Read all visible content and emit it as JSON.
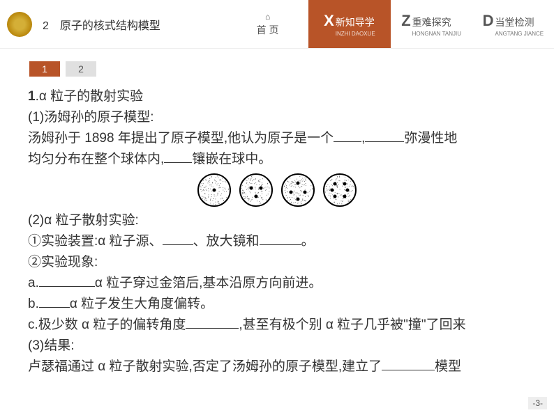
{
  "header": {
    "chapter_num": "2",
    "chapter_title": "原子的核式结构模型",
    "nav": {
      "home": {
        "icon": "⌂",
        "label": "首 页"
      },
      "items": [
        {
          "letter": "X",
          "cn": "新知导学",
          "py": "INZHI DAOXUE",
          "active": true
        },
        {
          "letter": "Z",
          "cn": "重难探究",
          "py": "HONGNAN TANJIU",
          "active": false
        },
        {
          "letter": "D",
          "cn": "当堂检测",
          "py": "ANGTANG JIANCE",
          "active": false
        }
      ]
    }
  },
  "tabs": [
    "1",
    "2"
  ],
  "content": {
    "h1_num": "1",
    "h1_title": ".α 粒子的散射实验",
    "p1_1": "(1)汤姆孙的原子模型:",
    "p1_2a": "汤姆孙于 1898 年提出了原子模型,他认为原子是一个",
    "p1_2b": ",",
    "p1_2c": "弥漫性地",
    "p1_3a": "均匀分布在整个球体内,",
    "p1_3b": "镶嵌在球中。",
    "p2_1": "(2)α 粒子散射实验:",
    "p2_2a": "①实验装置:α 粒子源、",
    "p2_2b": "、放大镜和",
    "p2_2c": "。",
    "p2_3": "②实验现象:",
    "p2_4a": "a.",
    "p2_4b": "α 粒子穿过金箔后,基本沿原方向前进。",
    "p2_5a": "b.",
    "p2_5b": "α 粒子发生大角度偏转。",
    "p2_6a": "c.极少数 α 粒子的偏转角度",
    "p2_6b": ",甚至有极个别 α 粒子几乎被\"撞\"了回来",
    "p3_1": "(3)结果:",
    "p3_2a": "卢瑟福通过 α 粒子散射实验,否定了汤姆孙的原子模型,建立了",
    "p3_2b": "模型"
  },
  "atoms": {
    "circle_stroke": "#000000",
    "dot_fill": "#000000",
    "bg_fill": "#ffffff",
    "stipple_color": "#555555",
    "configs": [
      {
        "dots": [
          [
            25,
            25
          ]
        ]
      },
      {
        "dots": [
          [
            18,
            22
          ],
          [
            32,
            22
          ],
          [
            25,
            34
          ]
        ]
      },
      {
        "dots": [
          [
            25,
            15
          ],
          [
            15,
            28
          ],
          [
            35,
            28
          ],
          [
            25,
            38
          ]
        ]
      },
      {
        "dots": [
          [
            18,
            16
          ],
          [
            32,
            16
          ],
          [
            14,
            25
          ],
          [
            36,
            25
          ],
          [
            18,
            34
          ],
          [
            32,
            34
          ]
        ]
      }
    ]
  },
  "blanks": {
    "w40": 40,
    "w56": 56,
    "w44": 44,
    "w80": 80,
    "w76": 76
  },
  "page_number": "-3-",
  "colors": {
    "accent": "#b85428",
    "tab_inactive": "#e0e0e0",
    "text": "#333333"
  }
}
